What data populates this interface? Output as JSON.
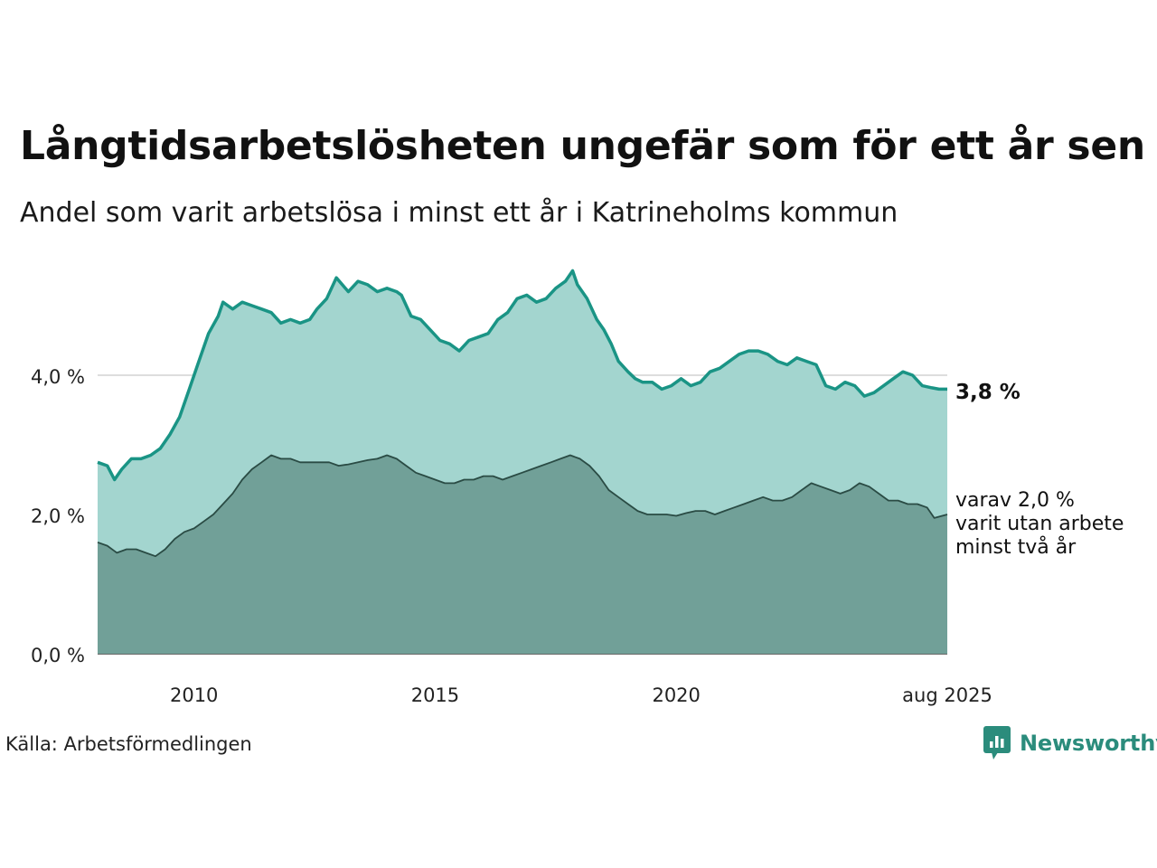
{
  "title": "Långtidsarbetslösheten ungefär som för ett år sen",
  "subtitle": "Andel som varit arbetslösa i minst ett år i Katrineholms kommun",
  "source": "Källa: Arbetsförmedlingen",
  "brand": {
    "name": "Newsworthy",
    "icon": "bar-chart-speech-bubble-icon",
    "color": "#2b8c7c"
  },
  "colors": {
    "area_upper": "#a3d5cf",
    "line_upper": "#1a9485",
    "area_lower": "#71a098",
    "line_lower": "#2a4b44",
    "grid": "#dddddd"
  },
  "chart_data": {
    "type": "area",
    "y_tick_labels": [
      "0,0 %",
      "2,0 %",
      "4,0 %"
    ],
    "x_tick_labels": [
      "2010",
      "2015",
      "2020",
      "aug 2025"
    ],
    "ylim": [
      0,
      5.6
    ],
    "xlim": [
      2008.0,
      2025.62
    ],
    "grid": true,
    "end_label_main": "3,8 %",
    "end_label_sub": [
      "varav 2,0 %",
      "varit utan arbete",
      "minst två år"
    ],
    "series": [
      {
        "name": "minst ett år",
        "points": [
          [
            2008.0,
            2.75
          ],
          [
            2008.2,
            2.7
          ],
          [
            2008.35,
            2.5
          ],
          [
            2008.5,
            2.65
          ],
          [
            2008.7,
            2.8
          ],
          [
            2008.9,
            2.8
          ],
          [
            2009.1,
            2.85
          ],
          [
            2009.3,
            2.95
          ],
          [
            2009.5,
            3.15
          ],
          [
            2009.7,
            3.4
          ],
          [
            2009.9,
            3.8
          ],
          [
            2010.1,
            4.2
          ],
          [
            2010.3,
            4.6
          ],
          [
            2010.5,
            4.85
          ],
          [
            2010.6,
            5.05
          ],
          [
            2010.8,
            4.95
          ],
          [
            2011.0,
            5.05
          ],
          [
            2011.2,
            5.0
          ],
          [
            2011.4,
            4.95
          ],
          [
            2011.6,
            4.9
          ],
          [
            2011.8,
            4.75
          ],
          [
            2012.0,
            4.8
          ],
          [
            2012.2,
            4.75
          ],
          [
            2012.4,
            4.8
          ],
          [
            2012.55,
            4.95
          ],
          [
            2012.75,
            5.1
          ],
          [
            2012.95,
            5.4
          ],
          [
            2013.2,
            5.2
          ],
          [
            2013.4,
            5.35
          ],
          [
            2013.6,
            5.3
          ],
          [
            2013.8,
            5.2
          ],
          [
            2014.0,
            5.25
          ],
          [
            2014.2,
            5.2
          ],
          [
            2014.3,
            5.15
          ],
          [
            2014.5,
            4.85
          ],
          [
            2014.7,
            4.8
          ],
          [
            2014.9,
            4.65
          ],
          [
            2015.1,
            4.5
          ],
          [
            2015.3,
            4.45
          ],
          [
            2015.5,
            4.35
          ],
          [
            2015.7,
            4.5
          ],
          [
            2015.9,
            4.55
          ],
          [
            2016.1,
            4.6
          ],
          [
            2016.3,
            4.8
          ],
          [
            2016.5,
            4.9
          ],
          [
            2016.7,
            5.1
          ],
          [
            2016.9,
            5.15
          ],
          [
            2017.1,
            5.05
          ],
          [
            2017.3,
            5.1
          ],
          [
            2017.5,
            5.25
          ],
          [
            2017.7,
            5.35
          ],
          [
            2017.85,
            5.5
          ],
          [
            2017.95,
            5.3
          ],
          [
            2018.15,
            5.1
          ],
          [
            2018.35,
            4.8
          ],
          [
            2018.5,
            4.65
          ],
          [
            2018.65,
            4.45
          ],
          [
            2018.8,
            4.2
          ],
          [
            2019.0,
            4.05
          ],
          [
            2019.15,
            3.95
          ],
          [
            2019.3,
            3.9
          ],
          [
            2019.5,
            3.9
          ],
          [
            2019.7,
            3.8
          ],
          [
            2019.9,
            3.85
          ],
          [
            2020.1,
            3.95
          ],
          [
            2020.3,
            3.85
          ],
          [
            2020.5,
            3.9
          ],
          [
            2020.7,
            4.05
          ],
          [
            2020.9,
            4.1
          ],
          [
            2021.1,
            4.2
          ],
          [
            2021.3,
            4.3
          ],
          [
            2021.5,
            4.35
          ],
          [
            2021.7,
            4.35
          ],
          [
            2021.9,
            4.3
          ],
          [
            2022.1,
            4.2
          ],
          [
            2022.3,
            4.15
          ],
          [
            2022.5,
            4.25
          ],
          [
            2022.7,
            4.2
          ],
          [
            2022.9,
            4.15
          ],
          [
            2023.1,
            3.85
          ],
          [
            2023.3,
            3.8
          ],
          [
            2023.5,
            3.9
          ],
          [
            2023.7,
            3.85
          ],
          [
            2023.9,
            3.7
          ],
          [
            2024.1,
            3.75
          ],
          [
            2024.3,
            3.85
          ],
          [
            2024.5,
            3.95
          ],
          [
            2024.7,
            4.05
          ],
          [
            2024.9,
            4.0
          ],
          [
            2025.1,
            3.85
          ],
          [
            2025.3,
            3.82
          ],
          [
            2025.45,
            3.8
          ],
          [
            2025.62,
            3.8
          ]
        ]
      },
      {
        "name": "minst två år",
        "points": [
          [
            2008.0,
            1.6
          ],
          [
            2008.2,
            1.55
          ],
          [
            2008.4,
            1.45
          ],
          [
            2008.6,
            1.5
          ],
          [
            2008.8,
            1.5
          ],
          [
            2009.0,
            1.45
          ],
          [
            2009.2,
            1.4
          ],
          [
            2009.4,
            1.5
          ],
          [
            2009.6,
            1.65
          ],
          [
            2009.8,
            1.75
          ],
          [
            2010.0,
            1.8
          ],
          [
            2010.2,
            1.9
          ],
          [
            2010.4,
            2.0
          ],
          [
            2010.6,
            2.15
          ],
          [
            2010.8,
            2.3
          ],
          [
            2011.0,
            2.5
          ],
          [
            2011.2,
            2.65
          ],
          [
            2011.4,
            2.75
          ],
          [
            2011.6,
            2.85
          ],
          [
            2011.8,
            2.8
          ],
          [
            2012.0,
            2.8
          ],
          [
            2012.2,
            2.75
          ],
          [
            2012.4,
            2.75
          ],
          [
            2012.6,
            2.75
          ],
          [
            2012.8,
            2.75
          ],
          [
            2013.0,
            2.7
          ],
          [
            2013.2,
            2.72
          ],
          [
            2013.4,
            2.75
          ],
          [
            2013.6,
            2.78
          ],
          [
            2013.8,
            2.8
          ],
          [
            2014.0,
            2.85
          ],
          [
            2014.2,
            2.8
          ],
          [
            2014.4,
            2.7
          ],
          [
            2014.6,
            2.6
          ],
          [
            2014.8,
            2.55
          ],
          [
            2015.0,
            2.5
          ],
          [
            2015.2,
            2.45
          ],
          [
            2015.4,
            2.45
          ],
          [
            2015.6,
            2.5
          ],
          [
            2015.8,
            2.5
          ],
          [
            2016.0,
            2.55
          ],
          [
            2016.2,
            2.55
          ],
          [
            2016.4,
            2.5
          ],
          [
            2016.6,
            2.55
          ],
          [
            2016.8,
            2.6
          ],
          [
            2017.0,
            2.65
          ],
          [
            2017.2,
            2.7
          ],
          [
            2017.4,
            2.75
          ],
          [
            2017.6,
            2.8
          ],
          [
            2017.8,
            2.85
          ],
          [
            2018.0,
            2.8
          ],
          [
            2018.2,
            2.7
          ],
          [
            2018.4,
            2.55
          ],
          [
            2018.6,
            2.35
          ],
          [
            2018.8,
            2.25
          ],
          [
            2019.0,
            2.15
          ],
          [
            2019.2,
            2.05
          ],
          [
            2019.4,
            2.0
          ],
          [
            2019.6,
            2.0
          ],
          [
            2019.8,
            2.0
          ],
          [
            2020.0,
            1.98
          ],
          [
            2020.2,
            2.02
          ],
          [
            2020.4,
            2.05
          ],
          [
            2020.6,
            2.05
          ],
          [
            2020.8,
            2.0
          ],
          [
            2021.0,
            2.05
          ],
          [
            2021.2,
            2.1
          ],
          [
            2021.4,
            2.15
          ],
          [
            2021.6,
            2.2
          ],
          [
            2021.8,
            2.25
          ],
          [
            2022.0,
            2.2
          ],
          [
            2022.2,
            2.2
          ],
          [
            2022.4,
            2.25
          ],
          [
            2022.6,
            2.35
          ],
          [
            2022.8,
            2.45
          ],
          [
            2023.0,
            2.4
          ],
          [
            2023.2,
            2.35
          ],
          [
            2023.4,
            2.3
          ],
          [
            2023.6,
            2.35
          ],
          [
            2023.8,
            2.45
          ],
          [
            2024.0,
            2.4
          ],
          [
            2024.2,
            2.3
          ],
          [
            2024.4,
            2.2
          ],
          [
            2024.6,
            2.2
          ],
          [
            2024.8,
            2.15
          ],
          [
            2025.0,
            2.15
          ],
          [
            2025.2,
            2.1
          ],
          [
            2025.35,
            1.95
          ],
          [
            2025.62,
            2.0
          ]
        ]
      }
    ]
  }
}
